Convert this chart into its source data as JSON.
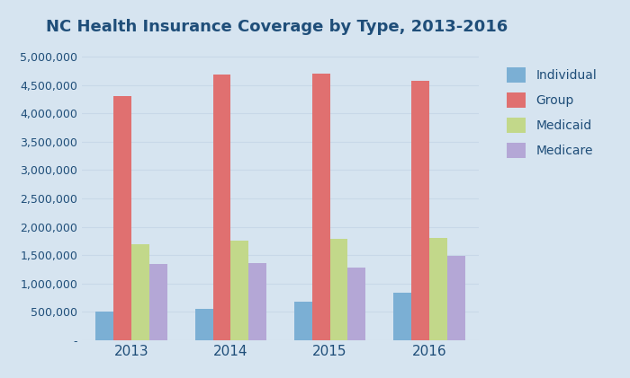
{
  "title": "NC Health Insurance Coverage by Type, 2013-2016",
  "years": [
    2013,
    2014,
    2015,
    2016
  ],
  "series": {
    "Individual": [
      500000,
      550000,
      680000,
      840000
    ],
    "Group": [
      4300000,
      4680000,
      4700000,
      4570000
    ],
    "Medicaid": [
      1700000,
      1760000,
      1790000,
      1800000
    ],
    "Medicare": [
      1350000,
      1360000,
      1280000,
      1490000
    ]
  },
  "colors": {
    "Individual": "#7bafd4",
    "Group": "#e07070",
    "Medicaid": "#c2d88a",
    "Medicare": "#b4a7d6"
  },
  "ylim": [
    0,
    5200000
  ],
  "yticks": [
    0,
    500000,
    1000000,
    1500000,
    2000000,
    2500000,
    3000000,
    3500000,
    4000000,
    4500000,
    5000000
  ],
  "background_color": "#d6e4f0",
  "plot_bg_color": "#d6e4f0",
  "title_color": "#1f4e79",
  "title_fontsize": 13,
  "legend_fontsize": 10,
  "tick_label_color": "#1f4e79",
  "bar_width": 0.18,
  "grid_color": "#c8d8e8",
  "zero_label": "-"
}
